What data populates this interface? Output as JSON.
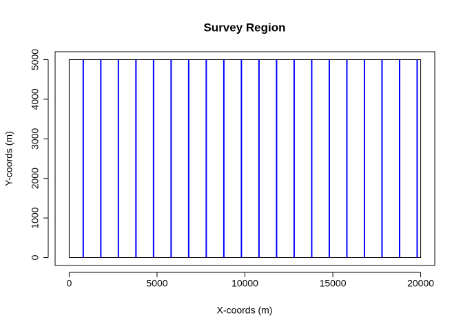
{
  "chart_data": {
    "type": "line",
    "title": "Survey Region",
    "x_label": "X-coords (m)",
    "y_label": "Y-coords (m)",
    "xlim": [
      -800,
      20800
    ],
    "ylim": [
      -200,
      5200
    ],
    "xticks": [
      0,
      5000,
      10000,
      15000,
      20000
    ],
    "yticks": [
      0,
      1000,
      2000,
      3000,
      4000,
      5000
    ],
    "series": [
      {
        "color": "#000000",
        "x": [
          0,
          20000,
          20000,
          0,
          0
        ],
        "values": [
          0,
          0,
          5000,
          5000,
          0
        ]
      },
      {
        "color": "#0000ff",
        "x": [
          800,
          800
        ],
        "values": [
          0,
          5000
        ]
      },
      {
        "color": "#0000ff",
        "x": [
          1800,
          1800
        ],
        "values": [
          0,
          5000
        ]
      },
      {
        "color": "#0000ff",
        "x": [
          2800,
          2800
        ],
        "values": [
          0,
          5000
        ]
      },
      {
        "color": "#0000ff",
        "x": [
          3800,
          3800
        ],
        "values": [
          0,
          5000
        ]
      },
      {
        "color": "#0000ff",
        "x": [
          4800,
          4800
        ],
        "values": [
          0,
          5000
        ]
      },
      {
        "color": "#0000ff",
        "x": [
          5800,
          5800
        ],
        "values": [
          0,
          5000
        ]
      },
      {
        "color": "#0000ff",
        "x": [
          6800,
          6800
        ],
        "values": [
          0,
          5000
        ]
      },
      {
        "color": "#0000ff",
        "x": [
          7800,
          7800
        ],
        "values": [
          0,
          5000
        ]
      },
      {
        "color": "#0000ff",
        "x": [
          8800,
          8800
        ],
        "values": [
          0,
          5000
        ]
      },
      {
        "color": "#0000ff",
        "x": [
          9800,
          9800
        ],
        "values": [
          0,
          5000
        ]
      },
      {
        "color": "#0000ff",
        "x": [
          10800,
          10800
        ],
        "values": [
          0,
          5000
        ]
      },
      {
        "color": "#0000ff",
        "x": [
          11800,
          11800
        ],
        "values": [
          0,
          5000
        ]
      },
      {
        "color": "#0000ff",
        "x": [
          12800,
          12800
        ],
        "values": [
          0,
          5000
        ]
      },
      {
        "color": "#0000ff",
        "x": [
          13800,
          13800
        ],
        "values": [
          0,
          5000
        ]
      },
      {
        "color": "#0000ff",
        "x": [
          14800,
          14800
        ],
        "values": [
          0,
          5000
        ]
      },
      {
        "color": "#0000ff",
        "x": [
          15800,
          15800
        ],
        "values": [
          0,
          5000
        ]
      },
      {
        "color": "#0000ff",
        "x": [
          16800,
          16800
        ],
        "values": [
          0,
          5000
        ]
      },
      {
        "color": "#0000ff",
        "x": [
          17800,
          17800
        ],
        "values": [
          0,
          5000
        ]
      },
      {
        "color": "#0000ff",
        "x": [
          18800,
          18800
        ],
        "values": [
          0,
          5000
        ]
      },
      {
        "color": "#0000ff",
        "x": [
          19800,
          19800
        ],
        "values": [
          0,
          5000
        ]
      }
    ]
  }
}
